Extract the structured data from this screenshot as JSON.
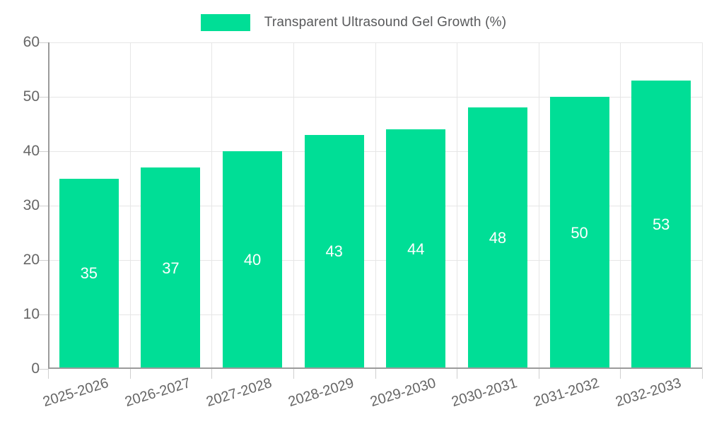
{
  "legend": {
    "label": "Transparent Ultrasound Gel Growth (%)"
  },
  "chart_data": {
    "type": "bar",
    "title": "Transparent Ultrasound Gel Growth (%)",
    "categories": [
      "2025-2026",
      "2026-2027",
      "2027-2028",
      "2028-2029",
      "2029-2030",
      "2030-2031",
      "2031-2032",
      "2032-2033"
    ],
    "values": [
      35,
      37,
      40,
      43,
      44,
      48,
      50,
      53
    ],
    "series_name": "Transparent Ultrasound Gel Growth (%)",
    "xlabel": "",
    "ylabel": "",
    "ylim": [
      0,
      60
    ],
    "yticks": [
      0,
      10,
      20,
      30,
      40,
      50,
      60
    ],
    "grid": true,
    "legend_position": "top-center",
    "x_label_rotation_deg": -17,
    "colors": {
      "bar": "#00DE96",
      "value_label": "#ffffff",
      "axis_line": "#9b9b9b",
      "gridline": "#e6e6e6",
      "tick": "#cfcfcf",
      "axis_text": "#666666",
      "legend_text": "#58595b",
      "background": "#ffffff"
    }
  }
}
